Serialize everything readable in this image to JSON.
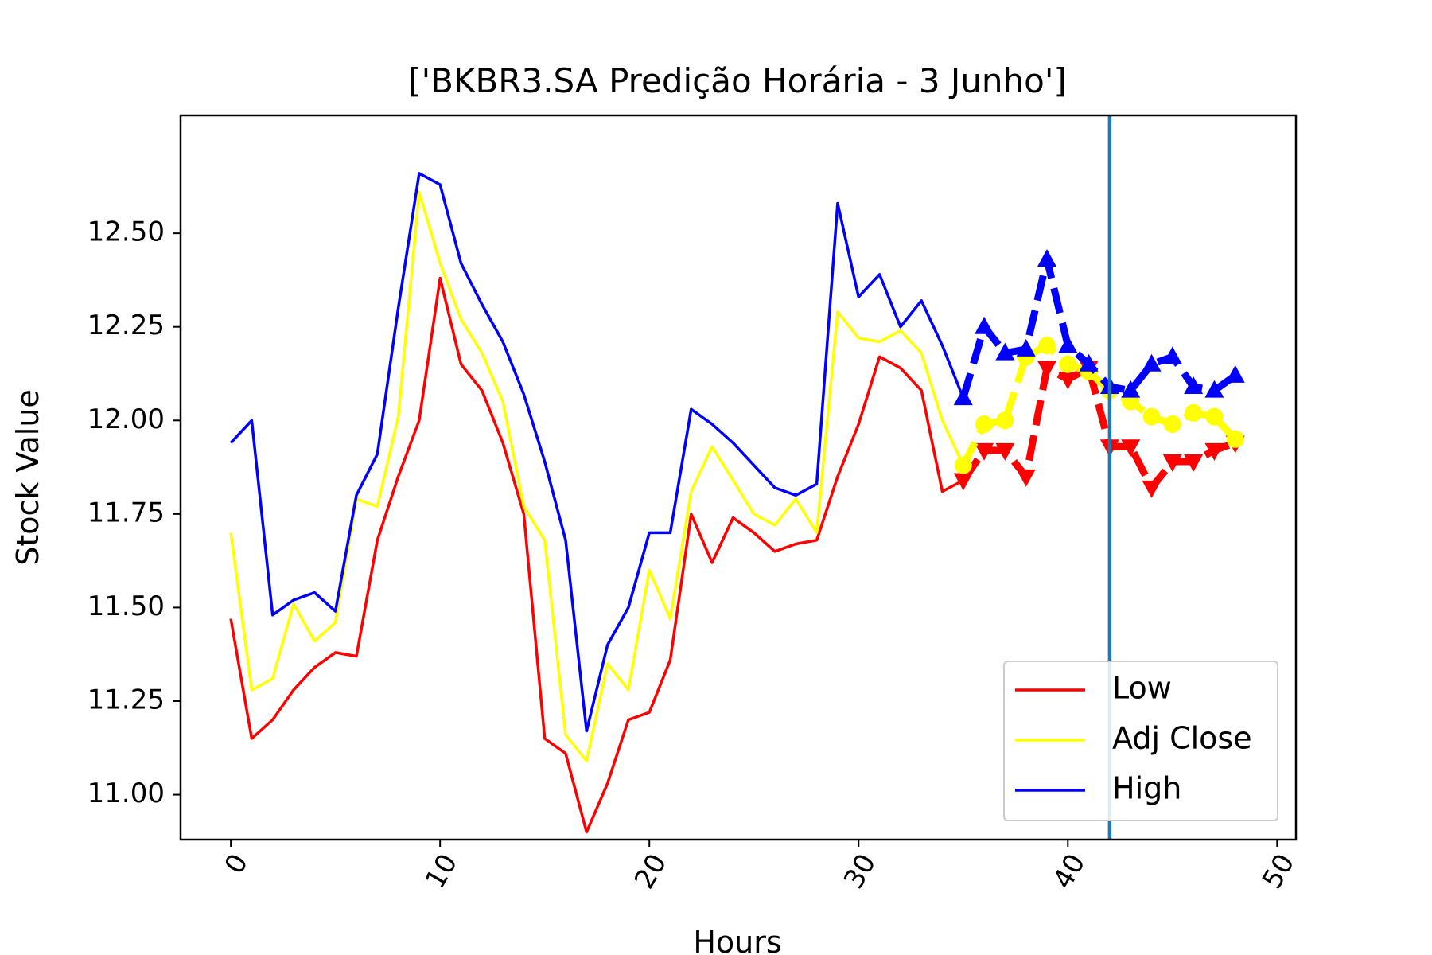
{
  "chart_data": {
    "type": "line",
    "title": "['BKBR3.SA Predição Horária - 3 Junho']",
    "xlabel": "Hours",
    "ylabel": "Stock Value",
    "xlim": [
      -2.4,
      50.9
    ],
    "ylim": [
      10.88,
      12.815
    ],
    "x_ticks": [
      0,
      10,
      20,
      30,
      40,
      50
    ],
    "x_tick_labels": [
      "0",
      "10",
      "20",
      "30",
      "40",
      "50"
    ],
    "y_ticks": [
      11.0,
      11.25,
      11.5,
      11.75,
      12.0,
      12.25,
      12.5
    ],
    "y_tick_labels": [
      "11.00",
      "11.25",
      "11.50",
      "11.75",
      "12.00",
      "12.25",
      "12.50"
    ],
    "grid": false,
    "legend_position": "lower right",
    "vertical_line": {
      "x": 42,
      "color": "#1f77b4"
    },
    "series": [
      {
        "name": "Low",
        "color": "#ff0000",
        "x": [
          0,
          1,
          2,
          3,
          4,
          5,
          6,
          7,
          8,
          9,
          10,
          11,
          12,
          13,
          14,
          15,
          16,
          17,
          18,
          19,
          20,
          21,
          22,
          23,
          24,
          25,
          26,
          27,
          28,
          29,
          30,
          31,
          32,
          33,
          34,
          35
        ],
        "values": [
          11.47,
          11.15,
          11.2,
          11.28,
          11.34,
          11.38,
          11.37,
          11.68,
          11.85,
          12.0,
          12.38,
          12.15,
          12.08,
          11.94,
          11.75,
          11.15,
          11.11,
          10.9,
          11.03,
          11.2,
          11.22,
          11.36,
          11.75,
          11.62,
          11.74,
          11.7,
          11.65,
          11.67,
          11.68,
          11.85,
          11.99,
          12.17,
          12.14,
          12.08,
          11.81,
          11.84
        ]
      },
      {
        "name": "Adj Close",
        "color": "#ffff00",
        "x": [
          0,
          1,
          2,
          3,
          4,
          5,
          6,
          7,
          8,
          9,
          10,
          11,
          12,
          13,
          14,
          15,
          16,
          17,
          18,
          19,
          20,
          21,
          22,
          23,
          24,
          25,
          26,
          27,
          28,
          29,
          30,
          31,
          32,
          33,
          34,
          35
        ],
        "values": [
          11.7,
          11.28,
          11.31,
          11.51,
          11.41,
          11.46,
          11.79,
          11.77,
          12.01,
          12.61,
          12.42,
          12.27,
          12.18,
          12.05,
          11.77,
          11.68,
          11.16,
          11.09,
          11.35,
          11.28,
          11.6,
          11.47,
          11.81,
          11.93,
          11.84,
          11.75,
          11.72,
          11.79,
          11.7,
          12.29,
          12.22,
          12.21,
          12.24,
          12.18,
          12.0,
          11.88
        ]
      },
      {
        "name": "High",
        "color": "#0000ff",
        "x": [
          0,
          1,
          2,
          3,
          4,
          5,
          6,
          7,
          8,
          9,
          10,
          11,
          12,
          13,
          14,
          15,
          16,
          17,
          18,
          19,
          20,
          21,
          22,
          23,
          24,
          25,
          26,
          27,
          28,
          29,
          30,
          31,
          32,
          33,
          34,
          35
        ],
        "values": [
          11.94,
          12.0,
          11.48,
          11.52,
          11.54,
          11.49,
          11.8,
          11.91,
          12.3,
          12.66,
          12.63,
          12.42,
          12.31,
          12.21,
          12.07,
          11.89,
          11.68,
          11.17,
          11.4,
          11.5,
          11.7,
          11.7,
          12.03,
          11.99,
          11.94,
          11.88,
          11.82,
          11.8,
          11.83,
          12.58,
          12.33,
          12.39,
          12.25,
          12.32,
          12.2,
          12.06
        ]
      }
    ],
    "prediction_series": [
      {
        "color": "#ff0000",
        "marker": "triangle-down",
        "x": [
          35,
          36,
          37,
          38,
          39,
          40,
          41,
          42,
          43,
          44,
          45,
          46,
          47,
          48
        ],
        "values": [
          11.84,
          11.92,
          11.92,
          11.85,
          12.14,
          12.11,
          12.14,
          11.93,
          11.93,
          11.82,
          11.89,
          11.89,
          11.92,
          11.94
        ]
      },
      {
        "color": "#ffff00",
        "marker": "circle",
        "x": [
          35,
          36,
          37,
          38,
          39,
          40,
          41,
          42,
          43,
          44,
          45,
          46,
          47,
          48
        ],
        "values": [
          11.88,
          11.99,
          12.0,
          12.17,
          12.2,
          12.15,
          12.13,
          12.08,
          12.05,
          12.01,
          11.99,
          12.02,
          12.01,
          11.95
        ]
      },
      {
        "color": "#0000ff",
        "marker": "triangle-up",
        "x": [
          35,
          36,
          37,
          38,
          39,
          40,
          41,
          42,
          43,
          44,
          45,
          46,
          47,
          48
        ],
        "values": [
          12.06,
          12.25,
          12.18,
          12.19,
          12.43,
          12.2,
          12.15,
          12.09,
          12.08,
          12.15,
          12.17,
          12.09,
          12.08,
          12.12
        ]
      }
    ]
  }
}
